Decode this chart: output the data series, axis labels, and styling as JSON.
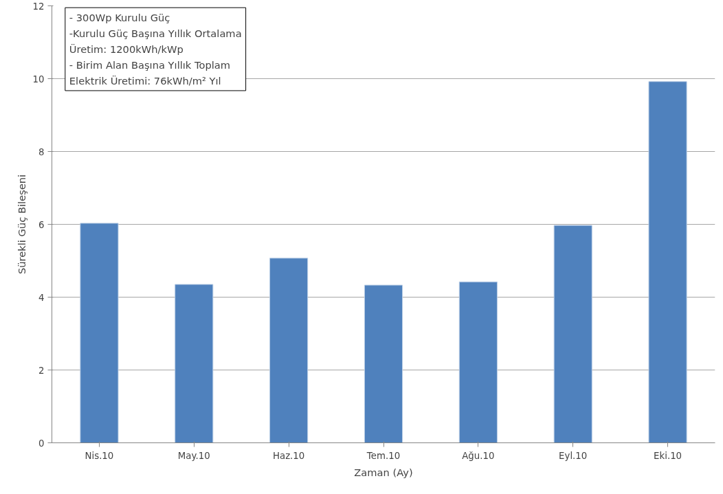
{
  "chart_data": {
    "type": "bar",
    "xlabel": "Zaman (Ay)",
    "ylabel": "Sürekli Güç Bileşeni",
    "categories": [
      "Nis.10",
      "May.10",
      "Haz.10",
      "Tem.10",
      "Ağu.10",
      "Eyl.10",
      "Eki.10"
    ],
    "values": [
      6.03,
      4.35,
      5.07,
      4.33,
      4.42,
      5.97,
      9.92
    ],
    "color": "#4f81bd",
    "ylim": [
      0,
      12
    ],
    "yticks": [
      0,
      2,
      4,
      6,
      8,
      10,
      12
    ],
    "grid": "y",
    "annotations": [
      "- 300Wp Kurulu Güç",
      "-Kurulu Güç Başına Yıllık Ortalama",
      "Üretim: 1200kWh/kWp",
      "- Birim Alan Başına Yıllık Toplam",
      "Elektrik Üretimi: 76kWh/m² Yıl"
    ]
  }
}
